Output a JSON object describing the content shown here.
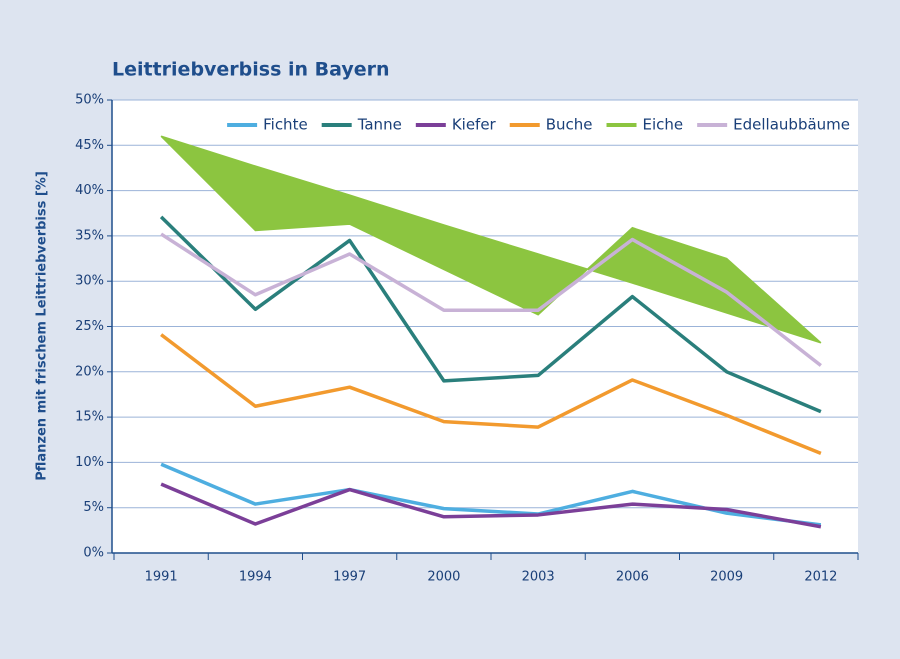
{
  "chart_data": {
    "type": "line",
    "title": "Leittriebverbiss in Bayern",
    "y_label": "Pflanzen mit frischem Leittriebverbiss [%]",
    "categories": [
      "1991",
      "1994",
      "1997",
      "2000",
      "2003",
      "2006",
      "2009",
      "2012"
    ],
    "ylim": [
      0,
      50
    ],
    "yticks": [
      {
        "value": 0,
        "label": "0%"
      },
      {
        "value": 5,
        "label": "5%"
      },
      {
        "value": 10,
        "label": "10%"
      },
      {
        "value": 15,
        "label": "15%"
      },
      {
        "value": 20,
        "label": "20%"
      },
      {
        "value": 25,
        "label": "25%"
      },
      {
        "value": 30,
        "label": "30%"
      },
      {
        "value": 35,
        "label": "35%"
      },
      {
        "value": 40,
        "label": "40%"
      },
      {
        "value": 45,
        "label": "45%"
      },
      {
        "value": 50,
        "label": "50%"
      }
    ],
    "grid": true,
    "legend": "top-right",
    "series": [
      {
        "name": "Fichte",
        "color": "#4eaee0",
        "values": [
          9.8,
          5.4,
          7.0,
          4.9,
          4.3,
          6.8,
          4.4,
          3.1
        ]
      },
      {
        "name": "Tanne",
        "color": "#2a7f7c",
        "values": [
          37.1,
          26.9,
          34.5,
          19.0,
          19.6,
          28.3,
          20.0,
          15.6
        ]
      },
      {
        "name": "Kiefer",
        "color": "#7b3f98",
        "values": [
          7.6,
          3.2,
          7.0,
          4.0,
          4.2,
          5.4,
          4.8,
          2.9
        ]
      },
      {
        "name": "Buche",
        "color": "#f29a2e",
        "values": [
          24.1,
          16.2,
          18.3,
          14.5,
          13.9,
          19.1,
          15.2,
          11.0
        ]
      },
      {
        "name": "Eiche",
        "color": "#8cc540",
        "values": [
          46.0,
          35.6,
          36.3,
          31.3,
          26.3,
          35.9,
          32.5,
          23.2
        ],
        "trend_values": [
          46.0,
          42.7,
          39.5,
          36.2,
          33.0,
          29.8,
          26.5,
          23.2
        ]
      },
      {
        "name": "Edellaubbäume",
        "color": "#c8b2d6",
        "values": [
          35.2,
          28.5,
          33.0,
          26.8,
          26.8,
          34.6,
          28.8,
          20.7
        ]
      }
    ]
  }
}
